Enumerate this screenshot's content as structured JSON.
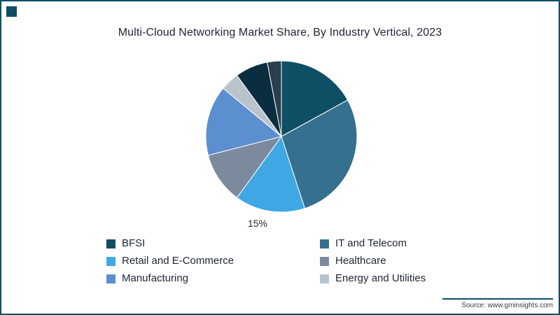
{
  "title": "Multi-Cloud Networking Market Share, By Industry Vertical, 2023",
  "source": "Source: www.gminsights.com",
  "frame": {
    "border_color": "#0e4f66",
    "accent_color": "#0e4f66"
  },
  "chart_data": {
    "type": "pie",
    "title": "Multi-Cloud Networking Market Share, By Industry Vertical, 2023",
    "legend_position": "bottom",
    "start_angle_deg": 0,
    "direction": "clockwise",
    "segments": [
      {
        "label": "BFSI",
        "value": 17,
        "color": "#0e4f66",
        "data_label": ""
      },
      {
        "label": "IT and Telecom",
        "value": 28,
        "color": "#35708e",
        "data_label": ""
      },
      {
        "label": "Retail and E-Commerce",
        "value": 15,
        "color": "#3fa8e4",
        "data_label": "15%"
      },
      {
        "label": "Healthcare",
        "value": 11,
        "color": "#7b8a9d",
        "data_label": ""
      },
      {
        "label": "Manufacturing",
        "value": 15,
        "color": "#5b8fd0",
        "data_label": ""
      },
      {
        "label": "Energy and Utilities",
        "value": 4,
        "color": "#b9c3cb",
        "data_label": ""
      },
      {
        "label": "",
        "value": 7,
        "color": "#0a2e40",
        "data_label": ""
      },
      {
        "label": "",
        "value": 3,
        "color": "#2a3f4d",
        "data_label": ""
      }
    ]
  }
}
